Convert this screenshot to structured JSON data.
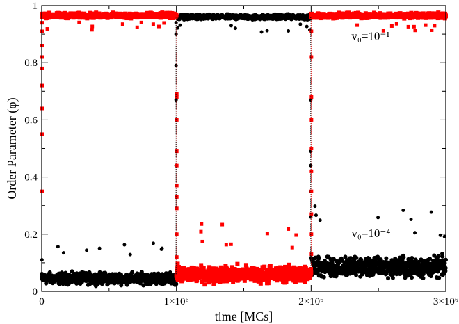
{
  "chart_data": {
    "type": "scatter",
    "title": "",
    "xlabel": "time [MCs]",
    "ylabel": "Order Parameter (φ)",
    "xlim": [
      0,
      3000000
    ],
    "ylim": [
      0,
      1
    ],
    "x_ticks": [
      {
        "value": 0,
        "label": "0"
      },
      {
        "value": 1000000,
        "label": "1×10⁶"
      },
      {
        "value": 2000000,
        "label": "2×10⁶"
      },
      {
        "value": 3000000,
        "label": "3×10⁶"
      }
    ],
    "y_ticks": [
      {
        "value": 0,
        "label": "0"
      },
      {
        "value": 0.2,
        "label": "0.2"
      },
      {
        "value": 0.4,
        "label": "0.4"
      },
      {
        "value": 0.6,
        "label": "0.6"
      },
      {
        "value": 0.8,
        "label": "0.8"
      },
      {
        "value": 1,
        "label": "1"
      }
    ],
    "grid": false,
    "annotations": [
      {
        "text": "v₀=10⁻¹",
        "x": 2300000,
        "y": 0.88
      },
      {
        "text": "v₀=10⁻⁴",
        "x": 2300000,
        "y": 0.19
      }
    ],
    "series": [
      {
        "color": "#ff0000",
        "marker": "square",
        "segments": [
          {
            "x_start": 0,
            "x_end": 1000000,
            "mean": 0.965,
            "spread": 0.012
          },
          {
            "x_start": 1000000,
            "x_end": 2000000,
            "mean": 0.06,
            "spread": 0.04
          },
          {
            "x_start": 2000000,
            "x_end": 3000000,
            "mean": 0.965,
            "spread": 0.012
          }
        ],
        "transitions": [
          {
            "x": 0,
            "from": 0.0,
            "to": 0.96,
            "points": [
              0.35,
              0.55,
              0.64,
              0.72,
              0.78,
              0.82,
              0.86,
              0.91,
              0.94
            ]
          },
          {
            "x": 1000000,
            "from": 0.96,
            "to": 0.06,
            "points": [
              0.69,
              0.68,
              0.6,
              0.49,
              0.44,
              0.37,
              0.33,
              0.29,
              0.2,
              0.12
            ]
          },
          {
            "x": 2000000,
            "from": 0.06,
            "to": 0.96,
            "points": [
              0.13,
              0.2,
              0.27,
              0.35,
              0.42,
              0.5,
              0.6,
              0.68,
              0.82,
              0.91
            ]
          }
        ]
      },
      {
        "color": "#000000",
        "marker": "circle",
        "segments": [
          {
            "x_start": 0,
            "x_end": 1000000,
            "mean": 0.045,
            "spread": 0.028
          },
          {
            "x_start": 1000000,
            "x_end": 2000000,
            "mean": 0.96,
            "spread": 0.012
          },
          {
            "x_start": 2000000,
            "x_end": 3000000,
            "mean": 0.085,
            "spread": 0.05
          }
        ],
        "transitions": [
          {
            "x": 1000000,
            "from": 0.06,
            "to": 0.96,
            "points": [
              0.44,
              0.67,
              0.79,
              0.9,
              0.94
            ]
          },
          {
            "x": 2000000,
            "from": 0.96,
            "to": 0.08,
            "points": [
              0.67,
              0.49,
              0.44,
              0.35,
              0.26
            ]
          }
        ]
      }
    ]
  }
}
